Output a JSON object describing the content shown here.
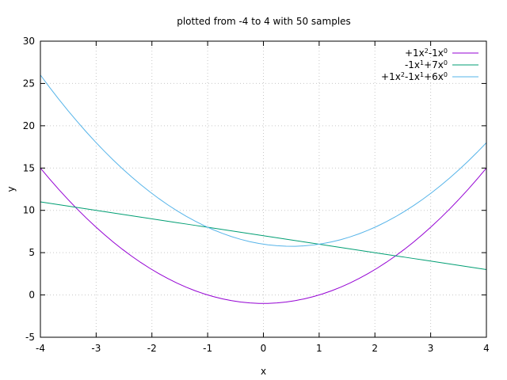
{
  "chart_data": {
    "type": "line",
    "title": "plotted from -4 to 4 with 50 samples",
    "xlabel": "x",
    "ylabel": "y",
    "xlim": [
      -4,
      4
    ],
    "ylim": [
      -5,
      30
    ],
    "xticks": [
      -4,
      -3,
      -2,
      -1,
      0,
      1,
      2,
      3,
      4
    ],
    "yticks": [
      -5,
      0,
      5,
      10,
      15,
      20,
      25,
      30
    ],
    "grid": true,
    "legend_position": "top-right",
    "series": [
      {
        "legend_parts": [
          {
            "t": "+1x"
          },
          {
            "t": "2",
            "sup": true
          },
          {
            "t": "-1x"
          },
          {
            "t": "0",
            "sup": true
          }
        ],
        "color": "#9400d3",
        "coefficients": [
          -1,
          0,
          1
        ]
      },
      {
        "legend_parts": [
          {
            "t": "-1x"
          },
          {
            "t": "1",
            "sup": true
          },
          {
            "t": "+7x"
          },
          {
            "t": "0",
            "sup": true
          }
        ],
        "color": "#009e73",
        "coefficients": [
          7,
          -1,
          0
        ]
      },
      {
        "legend_parts": [
          {
            "t": "+1x"
          },
          {
            "t": "2",
            "sup": true
          },
          {
            "t": "-1x"
          },
          {
            "t": "1",
            "sup": true
          },
          {
            "t": "+6x"
          },
          {
            "t": "0",
            "sup": true
          }
        ],
        "color": "#56b4e9",
        "coefficients": [
          6,
          -1,
          1
        ]
      }
    ],
    "samples": 50
  }
}
